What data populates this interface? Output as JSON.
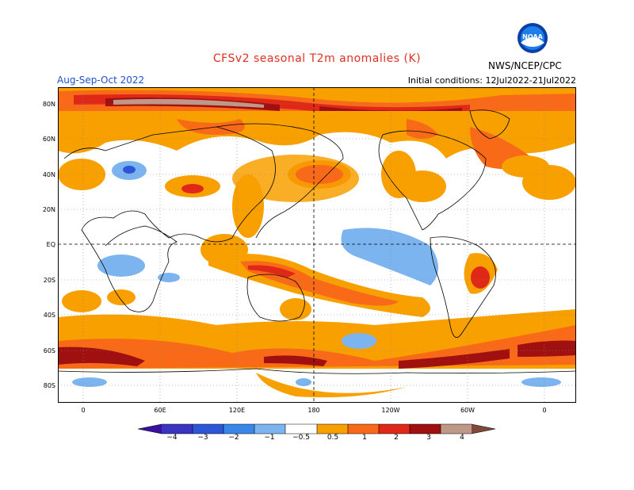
{
  "header": {
    "title": "CFSv2 seasonal T2m anomalies (K)",
    "season": "Aug-Sep-Oct 2022",
    "initial_conditions": "Initial conditions: 12Jul2022-21Jul2022",
    "agency": "NWS/NCEP/CPC",
    "logo_text": "NOAA"
  },
  "colors": {
    "title": "#e03020",
    "season": "#2050d0",
    "neg4": "#3a10a0",
    "neg3": "#2d55d8",
    "neg2": "#3a86e8",
    "neg1": "#7cb4f0",
    "pos05": "#f8a000",
    "pos1": "#f86a18",
    "pos2": "#e02818",
    "pos3": "#a01010",
    "pos4": "#c09888",
    "pos5": "#804838"
  },
  "axes": {
    "lat_labels": [
      "80N",
      "60N",
      "40N",
      "20N",
      "EQ",
      "20S",
      "40S",
      "60S",
      "80S"
    ],
    "lon_labels": [
      "0",
      "60E",
      "120E",
      "180",
      "120W",
      "60W",
      "0"
    ]
  },
  "colorbar": {
    "ticks": [
      "−4",
      "−3",
      "−2",
      "−1",
      "−0.5",
      "0.5",
      "1",
      "2",
      "3",
      "4"
    ]
  }
}
